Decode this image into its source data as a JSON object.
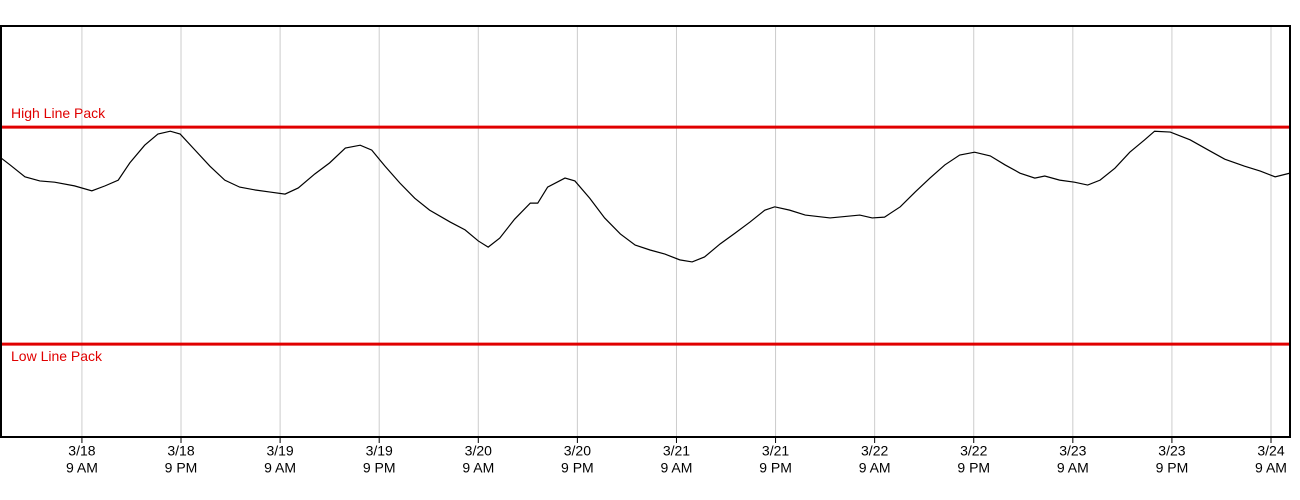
{
  "chart_data": {
    "type": "line",
    "xlim": [
      -9.8,
      146.3
    ],
    "ylim": [
      0,
      100
    ],
    "xticks": [
      {
        "value": 0,
        "label": [
          "3/18",
          "9 AM"
        ]
      },
      {
        "value": 12,
        "label": [
          "3/18",
          "9 PM"
        ]
      },
      {
        "value": 24,
        "label": [
          "3/19",
          "9 AM"
        ]
      },
      {
        "value": 36,
        "label": [
          "3/19",
          "9 PM"
        ]
      },
      {
        "value": 48,
        "label": [
          "3/20",
          "9 AM"
        ]
      },
      {
        "value": 60,
        "label": [
          "3/20",
          "9 PM"
        ]
      },
      {
        "value": 72,
        "label": [
          "3/21",
          "9 AM"
        ]
      },
      {
        "value": 84,
        "label": [
          "3/21",
          "9 PM"
        ]
      },
      {
        "value": 96,
        "label": [
          "3/22",
          "9 AM"
        ]
      },
      {
        "value": 108,
        "label": [
          "3/22",
          "9 PM"
        ]
      },
      {
        "value": 120,
        "label": [
          "3/23",
          "9 AM"
        ]
      },
      {
        "value": 132,
        "label": [
          "3/23",
          "9 PM"
        ]
      },
      {
        "value": 144,
        "label": [
          "3/24",
          "9 AM"
        ]
      }
    ],
    "grid": true,
    "reference_lines": [
      {
        "label": "High Line Pack",
        "value": 75.4,
        "color": "#e00000"
      },
      {
        "label": "Low Line Pack",
        "value": 22.6,
        "color": "#e00000"
      }
    ],
    "series": [
      {
        "color": "#000000",
        "x": [
          -9.8,
          -8.7,
          -6.9,
          -5.1,
          -3.3,
          -0.9,
          1.2,
          2.8,
          4.4,
          5.8,
          7.6,
          9.2,
          10.7,
          11.9,
          13.7,
          15.5,
          17.3,
          19.1,
          21.0,
          22.8,
          24.6,
          26.2,
          28.2,
          30.0,
          31.9,
          33.7,
          35.1,
          36.7,
          38.5,
          40.3,
          42.1,
          44.6,
          46.4,
          48.0,
          49.2,
          50.6,
          52.4,
          54.3,
          55.2,
          56.4,
          58.5,
          59.7,
          61.5,
          63.3,
          65.2,
          67.0,
          68.8,
          70.6,
          72.4,
          73.9,
          75.4,
          77.3,
          79.1,
          80.9,
          82.7,
          83.9,
          85.7,
          87.6,
          90.6,
          94.2,
          95.7,
          97.2,
          99.1,
          100.9,
          102.7,
          104.5,
          106.3,
          108.1,
          110.0,
          111.8,
          113.6,
          115.4,
          116.6,
          118.4,
          120.2,
          121.8,
          123.3,
          125.1,
          126.9,
          128.7,
          129.9,
          131.8,
          134.2,
          136.6,
          138.4,
          140.8,
          142.7,
          144.5,
          146.3
        ],
        "values": [
          67.9,
          66.2,
          63.3,
          62.3,
          62.0,
          61.1,
          59.9,
          61.1,
          62.5,
          66.7,
          71.0,
          73.7,
          74.4,
          73.7,
          69.8,
          65.9,
          62.5,
          60.8,
          60.1,
          59.6,
          59.1,
          60.6,
          64.0,
          66.7,
          70.3,
          71.0,
          69.8,
          65.9,
          61.8,
          58.1,
          55.2,
          52.3,
          50.4,
          47.7,
          46.2,
          48.4,
          53.0,
          56.9,
          56.9,
          60.8,
          63.0,
          62.3,
          58.1,
          53.3,
          49.4,
          46.7,
          45.5,
          44.5,
          43.1,
          42.6,
          43.8,
          47.0,
          49.6,
          52.3,
          55.2,
          56.0,
          55.2,
          54.0,
          53.3,
          54.0,
          53.3,
          53.5,
          56.0,
          59.6,
          63.0,
          66.2,
          68.6,
          69.3,
          68.4,
          66.2,
          64.2,
          63.0,
          63.5,
          62.5,
          62.0,
          61.3,
          62.5,
          65.4,
          69.3,
          72.3,
          74.4,
          74.2,
          72.3,
          69.6,
          67.6,
          65.9,
          64.7,
          63.3,
          64.2
        ]
      }
    ]
  }
}
